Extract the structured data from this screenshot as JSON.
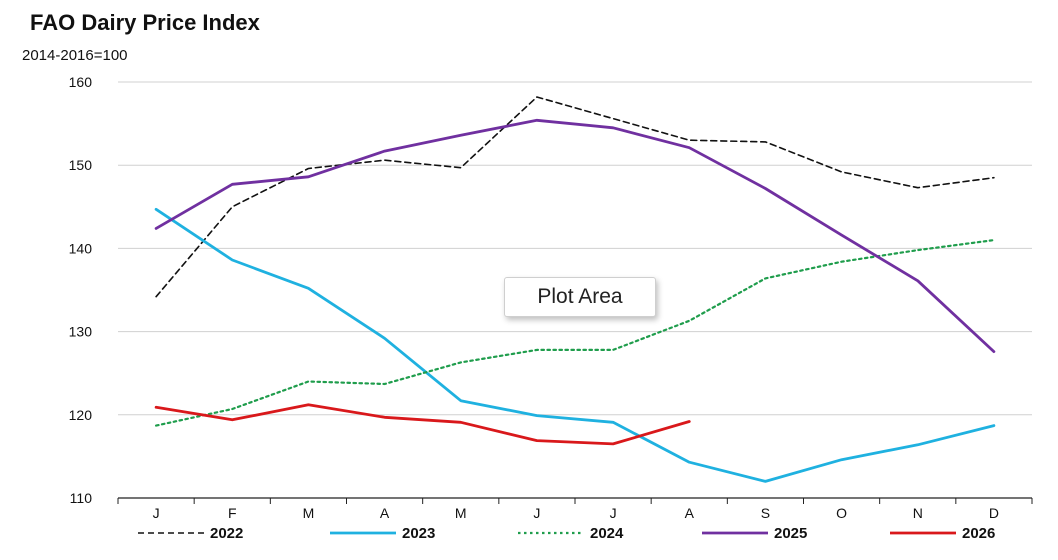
{
  "chart_data": {
    "type": "line",
    "title": "FAO Dairy Price Index",
    "subtitle": "2014-2016=100",
    "categories": [
      "J",
      "F",
      "M",
      "A",
      "M",
      "J",
      "J",
      "A",
      "S",
      "O",
      "N",
      "D"
    ],
    "ylim": [
      110,
      160
    ],
    "yticks": [
      110,
      120,
      130,
      140,
      150,
      160
    ],
    "grid": true,
    "legend_position": "bottom",
    "series": [
      {
        "name": "2022",
        "color": "#111111",
        "style": "dashed",
        "values": [
          134.2,
          145.0,
          149.6,
          150.6,
          149.7,
          158.2,
          155.6,
          153.0,
          152.8,
          149.2,
          147.3,
          148.5
        ]
      },
      {
        "name": "2023",
        "color": "#1fb1e0",
        "style": "solid",
        "values": [
          144.7,
          138.6,
          135.2,
          129.2,
          121.7,
          119.9,
          119.1,
          114.3,
          112.0,
          114.6,
          116.4,
          118.7
        ]
      },
      {
        "name": "2024",
        "color": "#1f9d4c",
        "style": "dotted",
        "values": [
          118.7,
          120.7,
          124.0,
          123.7,
          126.3,
          127.8,
          127.8,
          131.3,
          136.4,
          138.4,
          139.8,
          141.0
        ]
      },
      {
        "name": "2025",
        "color": "#7030a0",
        "style": "solid",
        "values": [
          142.4,
          147.7,
          148.6,
          151.7,
          153.6,
          155.4,
          154.5,
          152.1,
          147.2,
          141.6,
          136.1,
          127.6
        ]
      },
      {
        "name": "2026",
        "color": "#d9181b",
        "style": "solid",
        "values": [
          120.9,
          119.4,
          121.2,
          119.7,
          119.1,
          116.9,
          116.5,
          119.2,
          null,
          null,
          null,
          null
        ]
      }
    ]
  },
  "tooltip": {
    "label": "Plot Area"
  }
}
